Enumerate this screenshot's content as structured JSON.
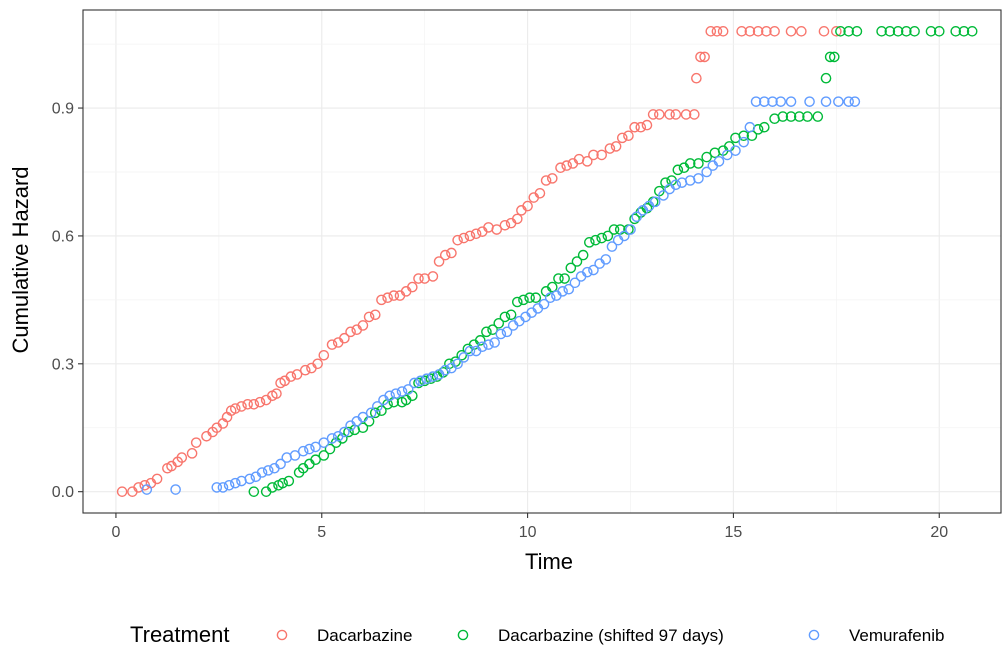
{
  "chart_data": {
    "type": "scatter",
    "xlabel": "Time",
    "ylabel": "Cumulative Hazard",
    "xlim": [
      -0.8,
      21.5
    ],
    "ylim": [
      -0.05,
      1.13
    ],
    "x_ticks": [
      0,
      5,
      10,
      15,
      20
    ],
    "y_ticks": [
      0.0,
      0.3,
      0.6,
      0.9
    ],
    "x_tick_labels": [
      "0",
      "5",
      "10",
      "15",
      "20"
    ],
    "y_tick_labels": [
      "0.0",
      "0.3",
      "0.6",
      "0.9"
    ],
    "grid": true,
    "legend": {
      "title": "Treatment",
      "placement": "bottom",
      "entries": [
        "Dacarbazine",
        "Dacarbazine (shifted 97 days)",
        "Vemurafenib"
      ]
    },
    "series": [
      {
        "name": "Dacarbazine",
        "color": "#F8766D",
        "points": [
          [
            0.15,
            0.0
          ],
          [
            0.4,
            0.0
          ],
          [
            0.55,
            0.01
          ],
          [
            0.7,
            0.015
          ],
          [
            0.85,
            0.02
          ],
          [
            1.0,
            0.03
          ],
          [
            1.25,
            0.055
          ],
          [
            1.35,
            0.06
          ],
          [
            1.5,
            0.07
          ],
          [
            1.6,
            0.08
          ],
          [
            1.85,
            0.09
          ],
          [
            1.95,
            0.115
          ],
          [
            2.2,
            0.13
          ],
          [
            2.35,
            0.14
          ],
          [
            2.45,
            0.15
          ],
          [
            2.6,
            0.16
          ],
          [
            2.7,
            0.175
          ],
          [
            2.8,
            0.19
          ],
          [
            2.9,
            0.195
          ],
          [
            3.05,
            0.2
          ],
          [
            3.2,
            0.205
          ],
          [
            3.35,
            0.205
          ],
          [
            3.5,
            0.21
          ],
          [
            3.65,
            0.215
          ],
          [
            3.8,
            0.225
          ],
          [
            3.9,
            0.23
          ],
          [
            4.0,
            0.255
          ],
          [
            4.1,
            0.26
          ],
          [
            4.25,
            0.27
          ],
          [
            4.4,
            0.275
          ],
          [
            4.6,
            0.285
          ],
          [
            4.75,
            0.29
          ],
          [
            4.9,
            0.3
          ],
          [
            5.05,
            0.32
          ],
          [
            5.25,
            0.345
          ],
          [
            5.4,
            0.35
          ],
          [
            5.55,
            0.36
          ],
          [
            5.7,
            0.375
          ],
          [
            5.85,
            0.38
          ],
          [
            6.0,
            0.39
          ],
          [
            6.15,
            0.41
          ],
          [
            6.3,
            0.415
          ],
          [
            6.45,
            0.45
          ],
          [
            6.6,
            0.455
          ],
          [
            6.75,
            0.46
          ],
          [
            6.9,
            0.46
          ],
          [
            7.05,
            0.47
          ],
          [
            7.2,
            0.48
          ],
          [
            7.35,
            0.5
          ],
          [
            7.5,
            0.5
          ],
          [
            7.7,
            0.505
          ],
          [
            7.85,
            0.54
          ],
          [
            8.0,
            0.555
          ],
          [
            8.15,
            0.56
          ],
          [
            8.3,
            0.59
          ],
          [
            8.45,
            0.595
          ],
          [
            8.6,
            0.6
          ],
          [
            8.75,
            0.605
          ],
          [
            8.9,
            0.61
          ],
          [
            9.05,
            0.62
          ],
          [
            9.25,
            0.615
          ],
          [
            9.45,
            0.625
          ],
          [
            9.6,
            0.63
          ],
          [
            9.75,
            0.64
          ],
          [
            9.85,
            0.66
          ],
          [
            10.0,
            0.67
          ],
          [
            10.15,
            0.69
          ],
          [
            10.3,
            0.7
          ],
          [
            10.45,
            0.73
          ],
          [
            10.6,
            0.735
          ],
          [
            10.8,
            0.76
          ],
          [
            10.95,
            0.765
          ],
          [
            11.1,
            0.77
          ],
          [
            11.25,
            0.78
          ],
          [
            11.45,
            0.775
          ],
          [
            11.6,
            0.79
          ],
          [
            11.8,
            0.79
          ],
          [
            12.0,
            0.805
          ],
          [
            12.15,
            0.81
          ],
          [
            12.3,
            0.83
          ],
          [
            12.45,
            0.835
          ],
          [
            12.6,
            0.855
          ],
          [
            12.75,
            0.855
          ],
          [
            12.9,
            0.86
          ],
          [
            13.05,
            0.885
          ],
          [
            13.2,
            0.885
          ],
          [
            13.45,
            0.885
          ],
          [
            13.6,
            0.885
          ],
          [
            13.85,
            0.885
          ],
          [
            14.05,
            0.885
          ],
          [
            14.1,
            0.97
          ],
          [
            14.2,
            1.02
          ],
          [
            14.3,
            1.02
          ],
          [
            14.45,
            1.08
          ],
          [
            14.6,
            1.08
          ],
          [
            14.75,
            1.08
          ],
          [
            15.2,
            1.08
          ],
          [
            15.4,
            1.08
          ],
          [
            15.6,
            1.08
          ],
          [
            15.8,
            1.08
          ],
          [
            16.0,
            1.08
          ],
          [
            16.4,
            1.08
          ],
          [
            16.65,
            1.08
          ],
          [
            17.2,
            1.08
          ],
          [
            17.5,
            1.08
          ]
        ]
      },
      {
        "name": "Dacarbazine (shifted 97 days)",
        "color": "#00BA38",
        "points": [
          [
            3.35,
            0.0
          ],
          [
            3.65,
            0.0
          ],
          [
            3.8,
            0.01
          ],
          [
            3.95,
            0.015
          ],
          [
            4.05,
            0.02
          ],
          [
            4.2,
            0.025
          ],
          [
            4.45,
            0.045
          ],
          [
            4.55,
            0.055
          ],
          [
            4.7,
            0.065
          ],
          [
            4.85,
            0.075
          ],
          [
            5.05,
            0.085
          ],
          [
            5.2,
            0.1
          ],
          [
            5.35,
            0.115
          ],
          [
            5.5,
            0.125
          ],
          [
            5.65,
            0.14
          ],
          [
            5.8,
            0.145
          ],
          [
            6.0,
            0.15
          ],
          [
            6.15,
            0.165
          ],
          [
            6.3,
            0.185
          ],
          [
            6.45,
            0.19
          ],
          [
            6.6,
            0.205
          ],
          [
            6.75,
            0.21
          ],
          [
            6.95,
            0.21
          ],
          [
            7.05,
            0.215
          ],
          [
            7.2,
            0.225
          ],
          [
            7.35,
            0.255
          ],
          [
            7.5,
            0.26
          ],
          [
            7.65,
            0.265
          ],
          [
            7.8,
            0.27
          ],
          [
            7.95,
            0.28
          ],
          [
            8.1,
            0.3
          ],
          [
            8.25,
            0.305
          ],
          [
            8.4,
            0.32
          ],
          [
            8.55,
            0.335
          ],
          [
            8.7,
            0.345
          ],
          [
            8.85,
            0.355
          ],
          [
            9.0,
            0.375
          ],
          [
            9.15,
            0.38
          ],
          [
            9.3,
            0.395
          ],
          [
            9.45,
            0.41
          ],
          [
            9.6,
            0.415
          ],
          [
            9.75,
            0.445
          ],
          [
            9.9,
            0.45
          ],
          [
            10.05,
            0.455
          ],
          [
            10.2,
            0.455
          ],
          [
            10.45,
            0.47
          ],
          [
            10.6,
            0.48
          ],
          [
            10.75,
            0.5
          ],
          [
            10.9,
            0.5
          ],
          [
            11.05,
            0.525
          ],
          [
            11.2,
            0.54
          ],
          [
            11.35,
            0.555
          ],
          [
            11.5,
            0.585
          ],
          [
            11.65,
            0.59
          ],
          [
            11.8,
            0.595
          ],
          [
            11.95,
            0.6
          ],
          [
            12.1,
            0.615
          ],
          [
            12.25,
            0.615
          ],
          [
            12.45,
            0.615
          ],
          [
            12.6,
            0.64
          ],
          [
            12.75,
            0.655
          ],
          [
            12.9,
            0.665
          ],
          [
            13.05,
            0.68
          ],
          [
            13.2,
            0.705
          ],
          [
            13.35,
            0.725
          ],
          [
            13.5,
            0.73
          ],
          [
            13.65,
            0.755
          ],
          [
            13.8,
            0.76
          ],
          [
            13.95,
            0.77
          ],
          [
            14.15,
            0.77
          ],
          [
            14.35,
            0.785
          ],
          [
            14.55,
            0.795
          ],
          [
            14.75,
            0.8
          ],
          [
            14.9,
            0.81
          ],
          [
            15.05,
            0.83
          ],
          [
            15.25,
            0.835
          ],
          [
            15.45,
            0.835
          ],
          [
            15.6,
            0.85
          ],
          [
            15.75,
            0.855
          ],
          [
            16.0,
            0.875
          ],
          [
            16.2,
            0.88
          ],
          [
            16.4,
            0.88
          ],
          [
            16.6,
            0.88
          ],
          [
            16.8,
            0.88
          ],
          [
            17.05,
            0.88
          ],
          [
            17.25,
            0.97
          ],
          [
            17.35,
            1.02
          ],
          [
            17.45,
            1.02
          ],
          [
            17.6,
            1.08
          ],
          [
            17.8,
            1.08
          ],
          [
            18.0,
            1.08
          ],
          [
            18.6,
            1.08
          ],
          [
            18.8,
            1.08
          ],
          [
            19.0,
            1.08
          ],
          [
            19.2,
            1.08
          ],
          [
            19.4,
            1.08
          ],
          [
            19.8,
            1.08
          ],
          [
            20.0,
            1.08
          ],
          [
            20.4,
            1.08
          ],
          [
            20.6,
            1.08
          ],
          [
            20.8,
            1.08
          ]
        ]
      },
      {
        "name": "Vemurafenib",
        "color": "#619CFF",
        "points": [
          [
            0.75,
            0.005
          ],
          [
            1.45,
            0.005
          ],
          [
            2.45,
            0.01
          ],
          [
            2.6,
            0.01
          ],
          [
            2.75,
            0.015
          ],
          [
            2.9,
            0.02
          ],
          [
            3.05,
            0.025
          ],
          [
            3.25,
            0.03
          ],
          [
            3.4,
            0.035
          ],
          [
            3.55,
            0.045
          ],
          [
            3.7,
            0.05
          ],
          [
            3.85,
            0.055
          ],
          [
            4.0,
            0.065
          ],
          [
            4.15,
            0.08
          ],
          [
            4.35,
            0.085
          ],
          [
            4.55,
            0.095
          ],
          [
            4.7,
            0.1
          ],
          [
            4.85,
            0.105
          ],
          [
            5.05,
            0.115
          ],
          [
            5.25,
            0.125
          ],
          [
            5.4,
            0.13
          ],
          [
            5.55,
            0.14
          ],
          [
            5.7,
            0.155
          ],
          [
            5.85,
            0.165
          ],
          [
            6.0,
            0.175
          ],
          [
            6.2,
            0.185
          ],
          [
            6.35,
            0.2
          ],
          [
            6.5,
            0.215
          ],
          [
            6.65,
            0.225
          ],
          [
            6.8,
            0.23
          ],
          [
            6.95,
            0.235
          ],
          [
            7.1,
            0.24
          ],
          [
            7.25,
            0.255
          ],
          [
            7.4,
            0.26
          ],
          [
            7.55,
            0.265
          ],
          [
            7.7,
            0.27
          ],
          [
            7.85,
            0.275
          ],
          [
            8.0,
            0.285
          ],
          [
            8.15,
            0.29
          ],
          [
            8.3,
            0.3
          ],
          [
            8.45,
            0.315
          ],
          [
            8.6,
            0.33
          ],
          [
            8.75,
            0.33
          ],
          [
            8.9,
            0.34
          ],
          [
            9.05,
            0.345
          ],
          [
            9.2,
            0.35
          ],
          [
            9.35,
            0.37
          ],
          [
            9.5,
            0.375
          ],
          [
            9.65,
            0.39
          ],
          [
            9.8,
            0.4
          ],
          [
            9.95,
            0.41
          ],
          [
            10.1,
            0.42
          ],
          [
            10.25,
            0.43
          ],
          [
            10.4,
            0.44
          ],
          [
            10.55,
            0.455
          ],
          [
            10.7,
            0.46
          ],
          [
            10.85,
            0.47
          ],
          [
            11.0,
            0.475
          ],
          [
            11.15,
            0.49
          ],
          [
            11.3,
            0.505
          ],
          [
            11.45,
            0.515
          ],
          [
            11.6,
            0.52
          ],
          [
            11.75,
            0.535
          ],
          [
            11.9,
            0.545
          ],
          [
            12.05,
            0.575
          ],
          [
            12.2,
            0.59
          ],
          [
            12.35,
            0.6
          ],
          [
            12.5,
            0.615
          ],
          [
            12.65,
            0.645
          ],
          [
            12.8,
            0.66
          ],
          [
            12.95,
            0.67
          ],
          [
            13.1,
            0.68
          ],
          [
            13.3,
            0.695
          ],
          [
            13.45,
            0.71
          ],
          [
            13.6,
            0.72
          ],
          [
            13.75,
            0.725
          ],
          [
            13.95,
            0.73
          ],
          [
            14.15,
            0.735
          ],
          [
            14.35,
            0.75
          ],
          [
            14.5,
            0.765
          ],
          [
            14.65,
            0.775
          ],
          [
            14.85,
            0.79
          ],
          [
            15.05,
            0.8
          ],
          [
            15.25,
            0.82
          ],
          [
            15.4,
            0.855
          ],
          [
            15.55,
            0.915
          ],
          [
            15.75,
            0.915
          ],
          [
            15.95,
            0.915
          ],
          [
            16.15,
            0.915
          ],
          [
            16.4,
            0.915
          ],
          [
            16.85,
            0.915
          ],
          [
            17.25,
            0.915
          ],
          [
            17.55,
            0.915
          ],
          [
            17.8,
            0.915
          ],
          [
            17.95,
            0.915
          ]
        ]
      }
    ]
  }
}
